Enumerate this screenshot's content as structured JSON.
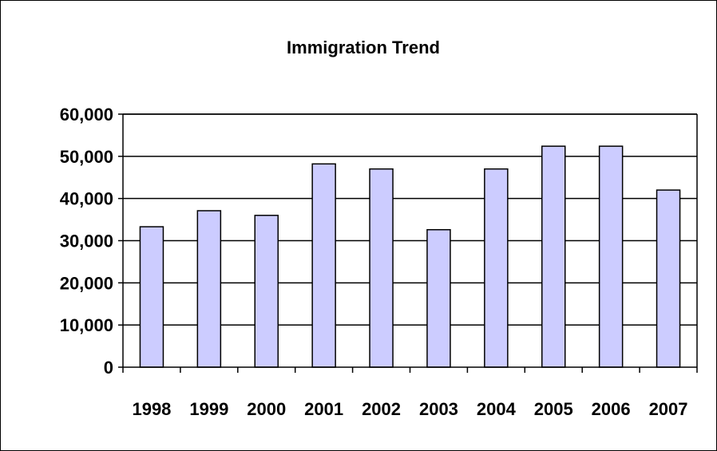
{
  "chart_data": {
    "type": "bar",
    "title": "Immigration Trend",
    "xlabel": "",
    "ylabel": "",
    "categories": [
      "1998",
      "1999",
      "2000",
      "2001",
      "2002",
      "2003",
      "2004",
      "2005",
      "2006",
      "2007"
    ],
    "values": [
      33300,
      37100,
      36000,
      48200,
      47000,
      32600,
      47000,
      52400,
      52400,
      42000
    ],
    "ylim": [
      0,
      60000
    ],
    "yticks": [
      0,
      10000,
      20000,
      30000,
      40000,
      50000,
      60000
    ],
    "ytick_labels": [
      "0",
      "10,000",
      "20,000",
      "30,000",
      "40,000",
      "50,000",
      "60,000"
    ],
    "grid": true,
    "legend": "none",
    "colors": {
      "bar_fill": "#CCCCFF",
      "bar_stroke": "#000000",
      "grid": "#000000",
      "background": "#FFFFFF"
    }
  }
}
